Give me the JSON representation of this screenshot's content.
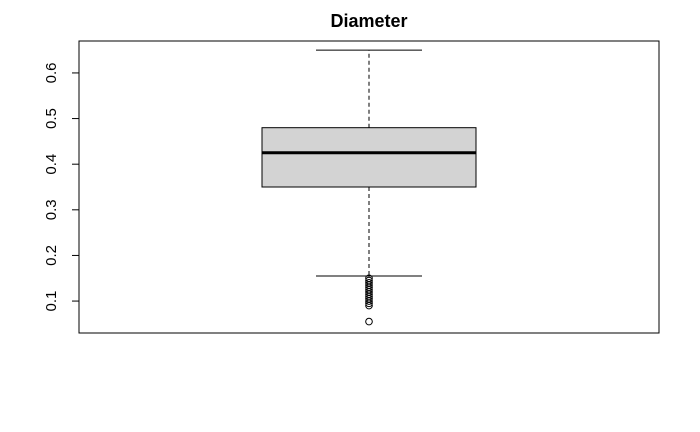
{
  "chart_data": {
    "type": "boxplot",
    "title": "Diameter",
    "xlabel": "",
    "ylabel": "",
    "ylim": [
      0.03,
      0.67
    ],
    "y_ticks": [
      0.1,
      0.2,
      0.3,
      0.4,
      0.5,
      0.6
    ],
    "y_tick_labels": [
      "0.1",
      "0.2",
      "0.3",
      "0.4",
      "0.5",
      "0.6"
    ],
    "grid": false,
    "box": {
      "whisker_low": 0.155,
      "q1": 0.35,
      "median": 0.425,
      "q3": 0.48,
      "whisker_high": 0.65,
      "outliers": [
        0.055,
        0.09,
        0.095,
        0.1,
        0.105,
        0.11,
        0.115,
        0.12,
        0.125,
        0.13,
        0.135,
        0.14,
        0.145,
        0.15
      ]
    },
    "colors": {
      "box_fill": "#d3d3d3",
      "stroke": "#000000"
    }
  }
}
